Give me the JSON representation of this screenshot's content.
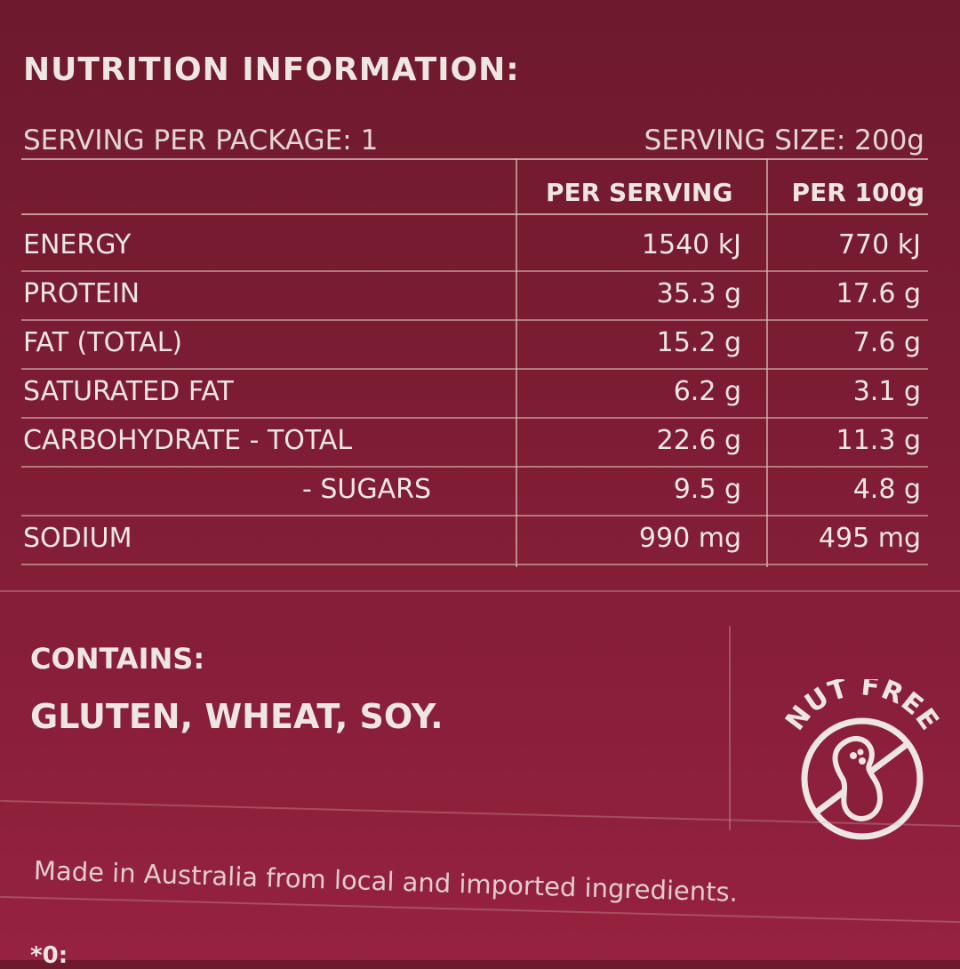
{
  "title": "NUTRITION INFORMATION:",
  "servings_per_package": "SERVING PER PACKAGE: 1",
  "serving_size": "SERVING SIZE: 200g",
  "table": {
    "headers": [
      "PER SERVING",
      "PER 100g"
    ],
    "rows": [
      {
        "label": "ENERGY",
        "per_serving": "1540 kJ",
        "per_100g": "770 kJ"
      },
      {
        "label": "PROTEIN",
        "per_serving": "35.3 g",
        "per_100g": "17.6 g"
      },
      {
        "label": "FAT (TOTAL)",
        "per_serving": "15.2 g",
        "per_100g": "7.6 g"
      },
      {
        "label": "SATURATED FAT",
        "per_serving": "6.2 g",
        "per_100g": "3.1 g"
      },
      {
        "label": "CARBOHYDRATE - TOTAL",
        "per_serving": "22.6 g",
        "per_100g": "11.3 g"
      },
      {
        "label": "- SUGARS",
        "per_serving": "9.5 g",
        "per_100g": "4.8 g"
      },
      {
        "label": "SODIUM",
        "per_serving": "990 mg",
        "per_100g": "495 mg"
      }
    ]
  },
  "contains_label": "CONTAINS:",
  "allergens": "GLUTEN, WHEAT, SOY.",
  "badge": {
    "text": "NUT FREE",
    "icon": "peanut-crossed-icon"
  },
  "origin": "Made in Australia from local and imported ingredients.",
  "footnote_partial": "*0:",
  "colors": {
    "background": "#7c1c33",
    "text": "#efe6e4"
  }
}
